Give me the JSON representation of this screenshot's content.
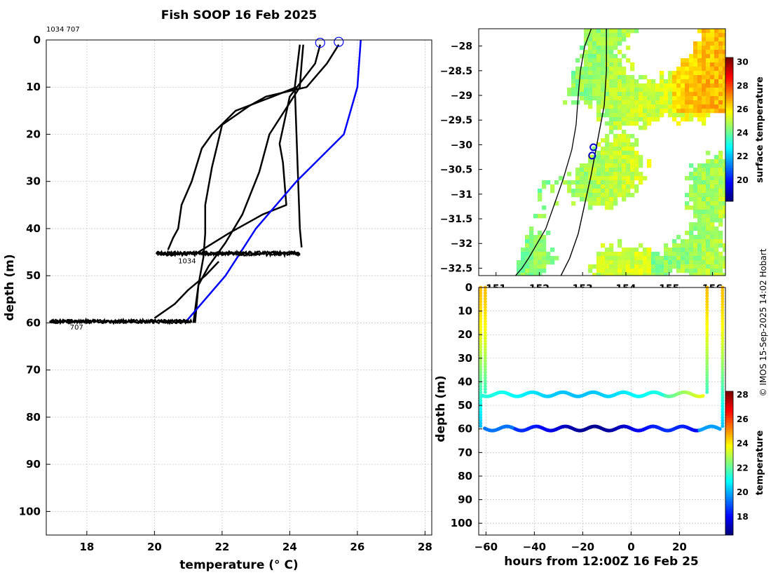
{
  "figure": {
    "title": "Fish SOOP 16 Feb 2025",
    "copyright": "© IMOS 15-Sep-2025 14:02 Hobart"
  },
  "chart_data": [
    {
      "id": "profile",
      "type": "line",
      "xlabel": "temperature (° C)",
      "ylabel": "depth (m)",
      "xlim": [
        16.8,
        28.2
      ],
      "ylim": [
        105,
        0
      ],
      "xticks": [
        18,
        20,
        22,
        24,
        26,
        28
      ],
      "yticks": [
        0,
        10,
        20,
        30,
        40,
        50,
        60,
        70,
        80,
        90,
        100
      ],
      "grid": true,
      "top_note": "1034 707",
      "labels": [
        {
          "text": "1034",
          "x": 20.7,
          "y": 46.8
        },
        {
          "text": "707",
          "x": 17.5,
          "y": 60.8
        }
      ],
      "surface_markers": [
        {
          "x": 24.9,
          "y": 0.6
        },
        {
          "x": 25.45,
          "y": 0.4
        }
      ],
      "series": [
        {
          "color": "#000000",
          "points": [
            [
              24.3,
              1
            ],
            [
              24.15,
              10
            ],
            [
              24.2,
              20
            ],
            [
              24.25,
              30
            ],
            [
              24.3,
              40
            ],
            [
              24.35,
              44
            ]
          ]
        },
        {
          "color": "#000000",
          "points": [
            [
              24.9,
              1
            ],
            [
              24.75,
              5
            ],
            [
              24.0,
              12
            ],
            [
              23.7,
              22
            ],
            [
              23.8,
              26
            ],
            [
              23.9,
              35
            ],
            [
              23.2,
              37
            ],
            [
              22.2,
              41
            ],
            [
              21.3,
              45
            ]
          ]
        },
        {
          "color": "#000000",
          "points": [
            [
              24.4,
              1
            ],
            [
              24.35,
              5
            ],
            [
              24.3,
              10
            ],
            [
              23.4,
              20
            ],
            [
              23.1,
              28
            ],
            [
              22.6,
              37
            ],
            [
              22.1,
              43
            ],
            [
              21.6,
              48
            ],
            [
              21.3,
              52
            ],
            [
              21.15,
              60
            ]
          ]
        },
        {
          "color": "#000000",
          "points": [
            [
              25.45,
              1
            ],
            [
              25.1,
              5
            ],
            [
              24.5,
              10
            ],
            [
              23.3,
              12
            ],
            [
              22.8,
              14
            ],
            [
              22.0,
              18
            ],
            [
              21.9,
              21
            ],
            [
              21.7,
              27
            ],
            [
              21.5,
              35
            ],
            [
              21.5,
              41
            ],
            [
              21.45,
              46
            ],
            [
              21.3,
              52
            ],
            [
              21.2,
              60
            ]
          ]
        },
        {
          "color": "#000000",
          "points": [
            [
              24.2,
              10
            ],
            [
              23.5,
              12
            ],
            [
              22.4,
              15
            ],
            [
              21.7,
              20
            ],
            [
              21.4,
              23
            ],
            [
              21.1,
              30
            ],
            [
              20.8,
              35
            ],
            [
              20.7,
              40
            ],
            [
              20.55,
              42
            ],
            [
              20.4,
              44.5
            ]
          ]
        },
        {
          "color": "#000000",
          "points": [
            [
              21.9,
              47
            ],
            [
              21.5,
              50
            ],
            [
              21.0,
              53
            ],
            [
              20.6,
              56
            ],
            [
              20.0,
              59
            ]
          ]
        },
        {
          "color": "#0000ff",
          "points": [
            [
              26.1,
              0
            ],
            [
              26.0,
              10
            ],
            [
              25.6,
              20
            ],
            [
              24.2,
              30
            ],
            [
              23.0,
              40
            ],
            [
              22.1,
              50
            ],
            [
              20.9,
              60
            ]
          ]
        }
      ],
      "band_1034": {
        "xmin": 20.05,
        "xmax": 24.3,
        "center": 45.3,
        "amplitude": 0.35
      },
      "band_707": {
        "xmin": 16.9,
        "xmax": 21.1,
        "center": 59.7,
        "amplitude": 0.3
      }
    },
    {
      "id": "map",
      "type": "heatmap",
      "colorbar_label": "surface temperature",
      "colorbar_range": [
        18.2,
        30.4
      ],
      "colorbar_ticks": [
        20,
        22,
        24,
        26,
        28,
        30
      ],
      "xlim": [
        150.6,
        156.3
      ],
      "ylim": [
        -32.65,
        -27.65
      ],
      "xticks": [
        151,
        152,
        153,
        154,
        155,
        156
      ],
      "yticks": [
        -28,
        -28.5,
        -29,
        -29.5,
        -30,
        -30.5,
        -31,
        -31.5,
        -32,
        -32.5
      ],
      "coastline": [
        [
          153.2,
          -27.65
        ],
        [
          153.05,
          -28.0
        ],
        [
          152.95,
          -28.5
        ],
        [
          152.9,
          -29.0
        ],
        [
          152.85,
          -29.6
        ],
        [
          152.75,
          -30.1
        ],
        [
          152.55,
          -30.7
        ],
        [
          152.35,
          -31.2
        ],
        [
          152.15,
          -31.7
        ],
        [
          151.95,
          -32.0
        ],
        [
          151.75,
          -32.3
        ],
        [
          151.6,
          -32.5
        ],
        [
          151.45,
          -32.65
        ]
      ],
      "track": [
        [
          153.55,
          -27.65
        ],
        [
          153.55,
          -28.5
        ],
        [
          153.5,
          -29.2
        ],
        [
          153.35,
          -29.9
        ],
        [
          153.2,
          -30.6
        ],
        [
          153.05,
          -31.2
        ],
        [
          152.9,
          -31.8
        ],
        [
          152.7,
          -32.3
        ],
        [
          152.5,
          -32.65
        ]
      ],
      "stations": [
        {
          "lon": 153.25,
          "lat": -30.05
        },
        {
          "lon": 153.22,
          "lat": -30.22
        }
      ]
    },
    {
      "id": "timeseries",
      "type": "scatter",
      "xlabel": "hours from 12:00Z 16 Feb 25",
      "ylabel": "depth (m)",
      "colorbar_label": "temperature",
      "colorbar_range": [
        16.5,
        28.3
      ],
      "colorbar_ticks": [
        18,
        20,
        22,
        24,
        26,
        28
      ],
      "xlim": [
        -63,
        39
      ],
      "ylim": [
        105,
        0
      ],
      "xticks": [
        -60,
        -40,
        -20,
        0,
        20
      ],
      "yticks": [
        0,
        10,
        20,
        30,
        40,
        50,
        60,
        70,
        80,
        90,
        100
      ],
      "grid": true,
      "mooring_707": {
        "x_start": -60.5,
        "x_end": 37,
        "depth": 59.8,
        "casts": [
          -62.2,
          37.8
        ]
      },
      "mooring_1034": {
        "x_start": -61.5,
        "x_end": 30,
        "depth": 45.3,
        "casts": [
          -60.3,
          31.4
        ]
      }
    }
  ]
}
